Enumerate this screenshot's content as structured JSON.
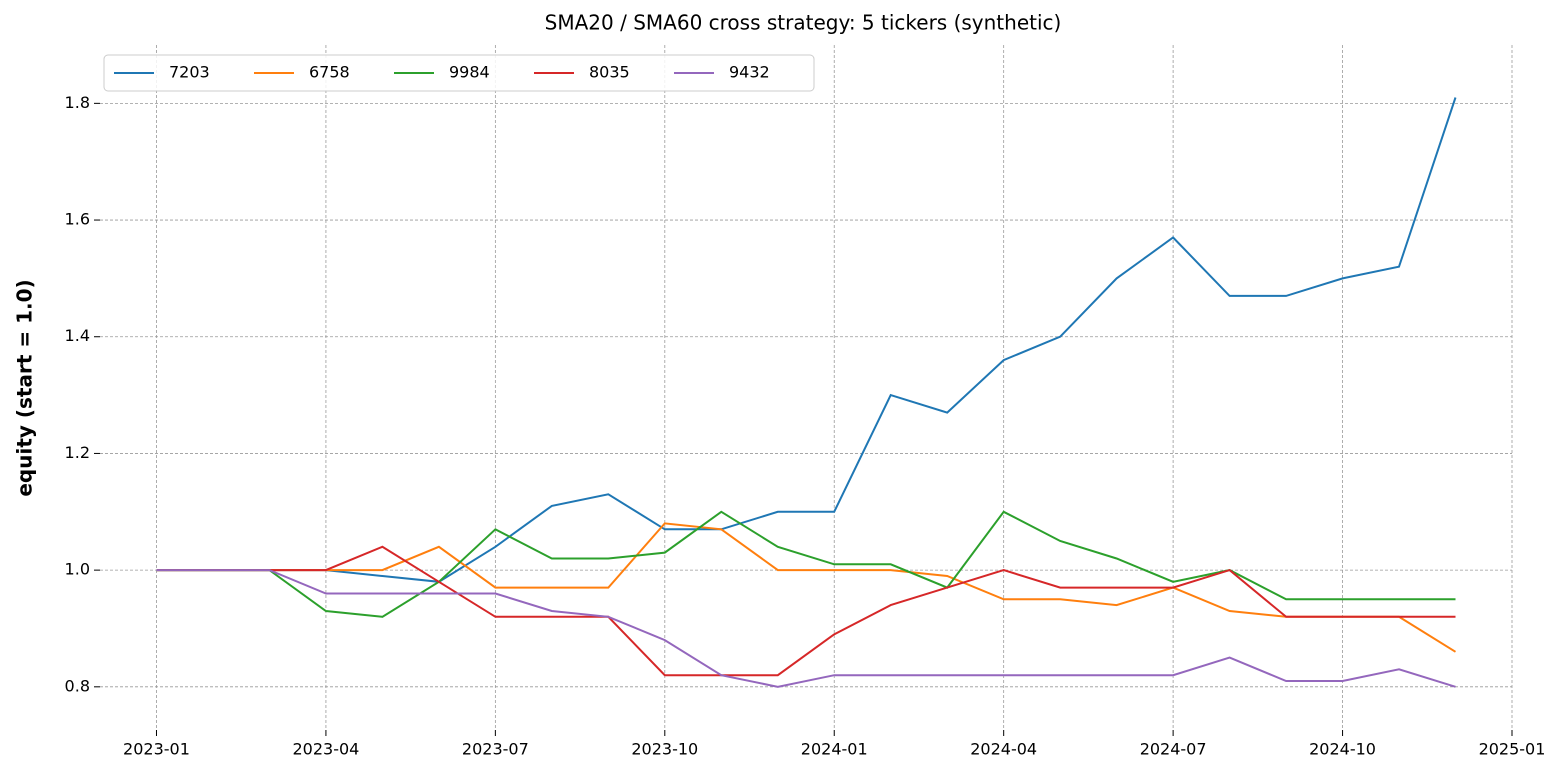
{
  "chart_data": {
    "type": "line",
    "title": "SMA20 / SMA60 cross strategy: 5 tickers (synthetic)",
    "y_label": "equity (start = 1.0)",
    "x": [
      "2023-01",
      "2023-02",
      "2023-03",
      "2023-04",
      "2023-05",
      "2023-06",
      "2023-07",
      "2023-08",
      "2023-09",
      "2023-10",
      "2023-11",
      "2023-12",
      "2024-01",
      "2024-02",
      "2024-03",
      "2024-04",
      "2024-05",
      "2024-06",
      "2024-07",
      "2024-08",
      "2024-09",
      "2024-10",
      "2024-11",
      "2024-12"
    ],
    "series": [
      {
        "name": "7203",
        "color": "#1f77b4",
        "values": [
          1.0,
          1.0,
          1.0,
          1.0,
          0.99,
          0.98,
          1.04,
          1.11,
          1.13,
          1.07,
          1.07,
          1.1,
          1.1,
          1.3,
          1.27,
          1.36,
          1.4,
          1.5,
          1.57,
          1.47,
          1.47,
          1.5,
          1.52,
          1.81
        ]
      },
      {
        "name": "6758",
        "color": "#ff7f0e",
        "values": [
          1.0,
          1.0,
          1.0,
          1.0,
          1.0,
          1.04,
          0.97,
          0.97,
          0.97,
          1.08,
          1.07,
          1.0,
          1.0,
          1.0,
          0.99,
          0.95,
          0.95,
          0.94,
          0.97,
          0.93,
          0.92,
          0.92,
          0.92,
          0.86
        ]
      },
      {
        "name": "9984",
        "color": "#2ca02c",
        "values": [
          1.0,
          1.0,
          1.0,
          0.93,
          0.92,
          0.98,
          1.07,
          1.02,
          1.02,
          1.03,
          1.1,
          1.04,
          1.01,
          1.01,
          0.97,
          1.1,
          1.05,
          1.02,
          0.98,
          1.0,
          0.95,
          0.95,
          0.95,
          0.95
        ]
      },
      {
        "name": "8035",
        "color": "#d62728",
        "values": [
          1.0,
          1.0,
          1.0,
          1.0,
          1.04,
          0.98,
          0.92,
          0.92,
          0.92,
          0.82,
          0.82,
          0.82,
          0.89,
          0.94,
          0.97,
          1.0,
          0.97,
          0.97,
          0.97,
          1.0,
          0.92,
          0.92,
          0.92,
          0.92
        ]
      },
      {
        "name": "9432",
        "color": "#9467bd",
        "values": [
          1.0,
          1.0,
          1.0,
          0.96,
          0.96,
          0.96,
          0.96,
          0.93,
          0.92,
          0.88,
          0.82,
          0.8,
          0.82,
          0.82,
          0.82,
          0.82,
          0.82,
          0.82,
          0.82,
          0.85,
          0.81,
          0.81,
          0.83,
          0.8
        ]
      }
    ],
    "xlim": [
      "2022-12",
      "2025-01"
    ],
    "xticks": [
      "2023-01",
      "2023-04",
      "2023-07",
      "2023-10",
      "2024-01",
      "2024-04",
      "2024-07",
      "2024-10",
      "2025-01"
    ],
    "ylim": [
      0.726,
      1.9
    ],
    "yticks": [
      0.8,
      {
        "value": 1,
        "label": "1.0"
      },
      1.2,
      1.4,
      1.6,
      1.8
    ],
    "grid": true,
    "legend": "upper-left"
  }
}
